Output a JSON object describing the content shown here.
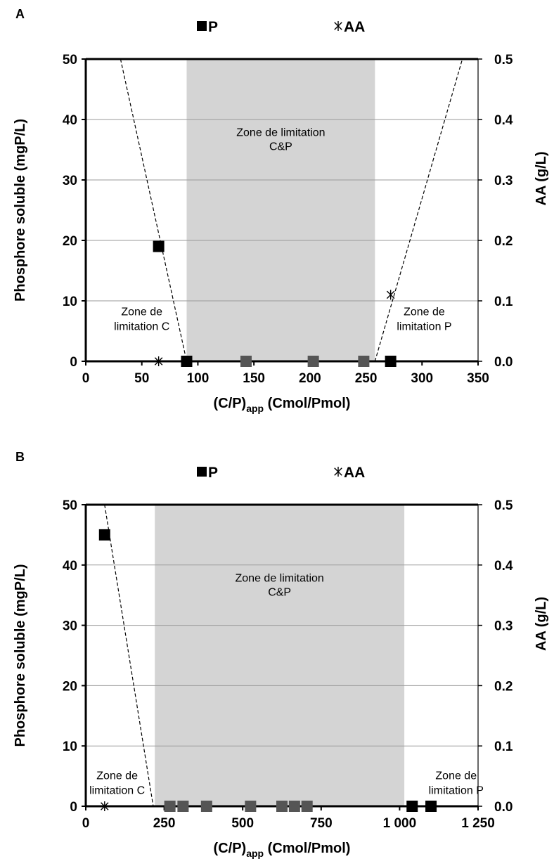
{
  "chart_data": [
    {
      "panel": "A",
      "type": "scatter",
      "legend": {
        "placement": "top",
        "entries": [
          {
            "name": "P",
            "marker": "filled-square"
          },
          {
            "name": "AA",
            "marker": "asterisk"
          }
        ]
      },
      "x": {
        "label": "(C/P)",
        "label_sub": "app",
        "label_rest": " (Cmol/Pmol)",
        "range": [
          0,
          350
        ],
        "ticks": [
          0,
          50,
          100,
          150,
          200,
          250,
          300,
          350
        ],
        "tick_labels": [
          "0",
          "50",
          "100",
          "150",
          "200",
          "250",
          "300",
          "350"
        ]
      },
      "y_left": {
        "label": "Phosphore soluble  (mgP/L)",
        "range": [
          0,
          50
        ],
        "ticks": [
          0,
          10,
          20,
          30,
          40,
          50
        ],
        "tick_labels": [
          "0",
          "10",
          "20",
          "30",
          "40",
          "50"
        ]
      },
      "y_right": {
        "label": "AA (g/L)",
        "range": [
          0,
          0.5
        ],
        "ticks": [
          0,
          0.1,
          0.2,
          0.3,
          0.4,
          0.5
        ],
        "tick_labels": [
          "0.0",
          "0.1",
          "0.2",
          "0.3",
          "0.4",
          "0.5"
        ]
      },
      "grid": "horizontal",
      "shaded_zone": {
        "x_range": [
          90,
          258
        ],
        "color": "#d4d4d4",
        "label": [
          "Zone de limitation",
          "C&P"
        ]
      },
      "annotations": [
        {
          "text": [
            "Zone de",
            "limitation C"
          ],
          "at": [
            50,
            7.6
          ]
        },
        {
          "text": [
            "Zone de",
            "limitation P"
          ],
          "at": [
            302,
            7.6
          ]
        }
      ],
      "dashed_lines": [
        {
          "from": [
            31,
            50
          ],
          "to": [
            90,
            0
          ]
        },
        {
          "from": [
            258,
            0
          ],
          "to": [
            336,
            50
          ]
        }
      ],
      "series": [
        {
          "name": "P",
          "axis": "left",
          "marker": "square",
          "points": [
            [
              65,
              19
            ],
            [
              90,
              0
            ],
            [
              143,
              0
            ],
            [
              203,
              0
            ],
            [
              248,
              0
            ],
            [
              272,
              0
            ]
          ],
          "colors": [
            "#000000",
            "#000000",
            "#555555",
            "#555555",
            "#555555",
            "#000000"
          ]
        },
        {
          "name": "AA",
          "axis": "right",
          "marker": "asterisk",
          "points": [
            [
              65,
              0.0
            ],
            [
              272,
              0.11
            ]
          ]
        }
      ],
      "colors": {
        "shade": "#d4d4d4",
        "grid": "#9a9a9a",
        "marker_black": "#000000",
        "marker_grey": "#555555"
      }
    },
    {
      "panel": "B",
      "type": "scatter",
      "legend": {
        "placement": "top",
        "entries": [
          {
            "name": "P",
            "marker": "filled-square"
          },
          {
            "name": "AA",
            "marker": "asterisk"
          }
        ]
      },
      "x": {
        "label": "(C/P)",
        "label_sub": "app",
        "label_rest": " (Cmol/Pmol)",
        "range": [
          0,
          1250
        ],
        "ticks": [
          0,
          250,
          500,
          750,
          1000,
          1250
        ],
        "tick_labels": [
          "0",
          "250",
          "500",
          "750",
          "1 000",
          "1 250"
        ]
      },
      "y_left": {
        "label": "Phosphore soluble (mgP/L)",
        "range": [
          0,
          50
        ],
        "ticks": [
          0,
          10,
          20,
          30,
          40,
          50
        ],
        "tick_labels": [
          "0",
          "10",
          "20",
          "30",
          "40",
          "50"
        ]
      },
      "y_right": {
        "label": "AA (g/L)",
        "range": [
          0,
          0.5
        ],
        "ticks": [
          0,
          0.1,
          0.2,
          0.3,
          0.4,
          0.5
        ],
        "tick_labels": [
          "0.0",
          "0.1",
          "0.2",
          "0.3",
          "0.4",
          "0.5"
        ]
      },
      "grid": "horizontal",
      "shaded_zone": {
        "x_range": [
          220,
          1015
        ],
        "color": "#d4d4d4",
        "label": [
          "Zone de limitation",
          "C&P"
        ]
      },
      "annotations": [
        {
          "text": [
            "Zone de",
            "limitation C"
          ],
          "at": [
            100,
            4.5
          ]
        },
        {
          "text": [
            "Zone de",
            "limitation P"
          ],
          "at": [
            1180,
            4.5
          ]
        }
      ],
      "dashed_lines": [
        {
          "from": [
            60,
            50
          ],
          "to": [
            215,
            0
          ]
        }
      ],
      "series": [
        {
          "name": "P",
          "axis": "left",
          "marker": "square",
          "points": [
            [
              60,
              45
            ],
            [
              268,
              0
            ],
            [
              310,
              0
            ],
            [
              385,
              0
            ],
            [
              525,
              0
            ],
            [
              625,
              0
            ],
            [
              665,
              0
            ],
            [
              705,
              0
            ],
            [
              1040,
              0
            ],
            [
              1100,
              0
            ]
          ],
          "colors": [
            "#000000",
            "#555555",
            "#555555",
            "#555555",
            "#555555",
            "#555555",
            "#555555",
            "#555555",
            "#000000",
            "#000000"
          ]
        },
        {
          "name": "AA",
          "axis": "right",
          "marker": "asterisk",
          "points": [
            [
              60,
              0.0
            ]
          ]
        }
      ],
      "colors": {
        "shade": "#d4d4d4",
        "grid": "#9a9a9a",
        "marker_black": "#000000",
        "marker_grey": "#555555"
      }
    }
  ]
}
